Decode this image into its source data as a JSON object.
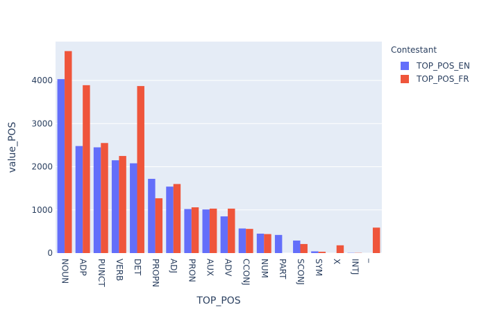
{
  "chart_data": {
    "type": "bar",
    "barmode": "group",
    "xlabel": "TOP_POS",
    "ylabel": "value_POS",
    "ylim": [
      0,
      4900
    ],
    "yticks": [
      0,
      1000,
      2000,
      3000,
      4000
    ],
    "grid": true,
    "legend_position": "top-right",
    "legend_title": "Contestant",
    "categories": [
      "NOUN",
      "ADP",
      "PUNCT",
      "VERB",
      "DET",
      "PROPN",
      "ADJ",
      "PRON",
      "AUX",
      "ADV",
      "CCONJ",
      "NUM",
      "PART",
      "SCONJ",
      "SYM",
      "X",
      "INTJ",
      "_"
    ],
    "series": [
      {
        "name": "TOP_POS_EN",
        "color": "#636efa",
        "values": [
          4030,
          2480,
          2450,
          2150,
          2080,
          1720,
          1540,
          1020,
          1010,
          850,
          570,
          450,
          420,
          290,
          40,
          0,
          5,
          0
        ]
      },
      {
        "name": "TOP_POS_FR",
        "color": "#ef553b",
        "values": [
          4680,
          3890,
          2550,
          2250,
          3870,
          1270,
          1600,
          1060,
          1030,
          1030,
          560,
          440,
          0,
          210,
          30,
          180,
          5,
          590
        ]
      }
    ]
  },
  "colors": {
    "plot_bg": "#e5ecf6",
    "grid": "#ffffff",
    "text": "#2a3f5f"
  }
}
